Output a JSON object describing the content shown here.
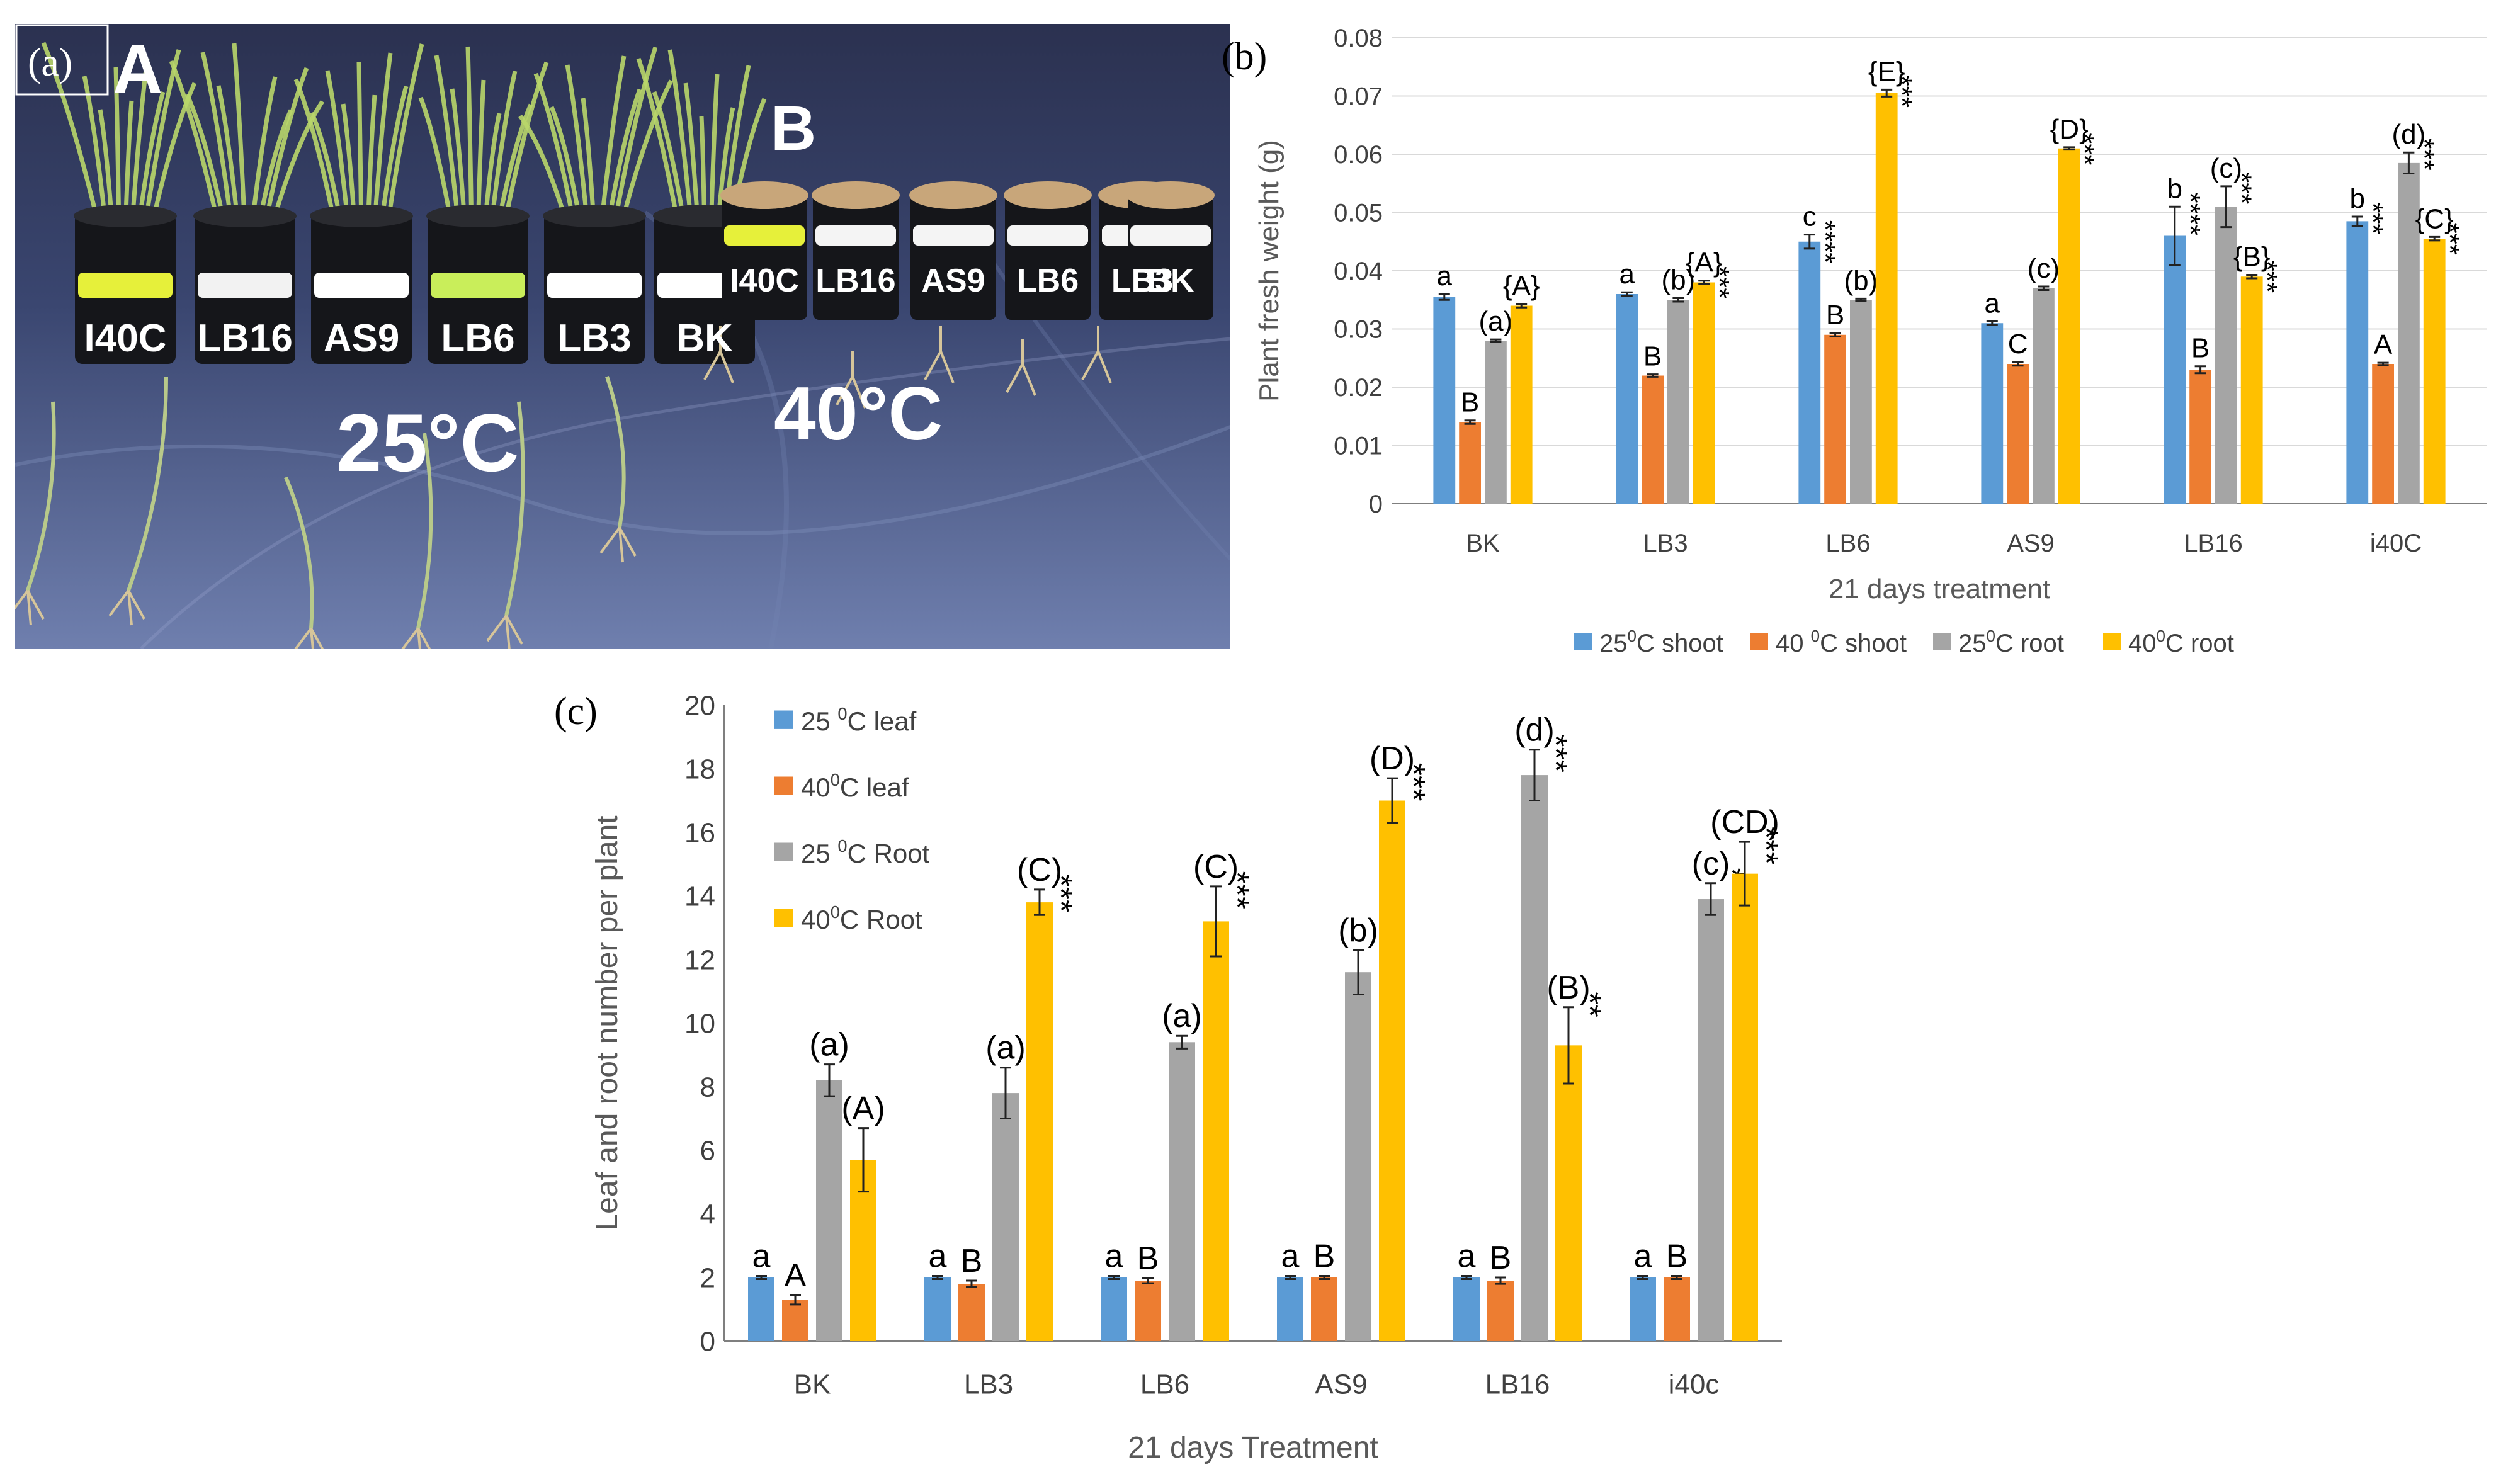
{
  "panel_a": {
    "label": "(a)",
    "group_a": "A",
    "group_b": "B",
    "temp_a": "25°C",
    "temp_b": "40°C",
    "pots_a": [
      "I40C",
      "LB16",
      "AS9",
      "LB6",
      "LB3",
      "BK"
    ],
    "pots_b": [
      "I40C",
      "LB16",
      "AS9",
      "LB6",
      "LB3",
      "BK"
    ],
    "colors": {
      "backdrop": "#34406a",
      "pot": "#15161a",
      "leaf": "#b9d66a",
      "soil": "#c8a67a"
    }
  },
  "chart_data": [
    {
      "type": "bar",
      "panel": "(b)",
      "title": "",
      "xlabel": "21 days treatment",
      "ylabel": "Plant fresh weight (g)",
      "ylim": [
        0,
        0.08
      ],
      "yticks": [
        "0",
        "0.01",
        "0.02",
        "0.03",
        "0.04",
        "0.05",
        "0.06",
        "0.07",
        "0.08"
      ],
      "legend_position": "bottom",
      "categories": [
        "BK",
        "LB3",
        "LB6",
        "AS9",
        "LB16",
        "i40C"
      ],
      "series": [
        {
          "name": "25°C shoot",
          "color": "#5b9bd5",
          "values": [
            0.0355,
            0.036,
            0.045,
            0.031,
            0.046,
            0.0485
          ],
          "errors": [
            0.0005,
            0.0003,
            0.0012,
            0.0003,
            0.005,
            0.0008
          ],
          "labels": [
            "a",
            "a",
            "c",
            "a",
            "b",
            "b"
          ],
          "stars": [
            "",
            "",
            "****",
            "",
            "****",
            "***"
          ]
        },
        {
          "name": "40°C shoot",
          "color": "#ed7d31",
          "values": [
            0.014,
            0.022,
            0.029,
            0.024,
            0.023,
            0.024
          ],
          "errors": [
            0.0003,
            0.0002,
            0.0003,
            0.0003,
            0.0006,
            0.0002
          ],
          "labels": [
            "B",
            "B",
            "B",
            "C",
            "B",
            "A"
          ],
          "stars": [
            "",
            "",
            "***",
            "***",
            "***",
            "***"
          ]
        },
        {
          "name": "25°C root",
          "color": "#a5a5a5",
          "values": [
            0.028,
            0.035,
            0.035,
            0.037,
            0.051,
            0.0585
          ],
          "errors": [
            0.0002,
            0.0003,
            0.0002,
            0.0003,
            0.0035,
            0.0018
          ],
          "labels": [
            "(a)",
            "(b)",
            "(b)",
            "(c)",
            "(c)",
            "(d)"
          ],
          "stars": [
            "",
            "**",
            "**",
            "***",
            "***",
            "***"
          ]
        },
        {
          "name": "40°C root",
          "color": "#ffc000",
          "values": [
            0.034,
            0.038,
            0.0705,
            0.061,
            0.039,
            0.0455
          ],
          "errors": [
            0.0003,
            0.0003,
            0.0006,
            0.0002,
            0.0003,
            0.0003
          ],
          "labels": [
            "{A}",
            "{A}",
            "{E}",
            "{D}",
            "{B}",
            "{C}"
          ],
          "stars": [
            "",
            "***",
            "***",
            "***",
            "***",
            "***"
          ]
        }
      ],
      "legend_labels": [
        {
          "temp": "25",
          "deg": "0",
          "unit": "C shoot"
        },
        {
          "temp": "40 ",
          "deg": "0",
          "unit": "C shoot"
        },
        {
          "temp": "25",
          "deg": "0",
          "unit": "C root"
        },
        {
          "temp": "40",
          "deg": "0",
          "unit": "C root"
        }
      ]
    },
    {
      "type": "bar",
      "panel": "(c)",
      "title": "",
      "xlabel": "21 days Treatment",
      "ylabel": "Leaf and root number per plant",
      "ylim": [
        0,
        20
      ],
      "yticks": [
        "0",
        "2",
        "4",
        "6",
        "8",
        "10",
        "12",
        "14",
        "16",
        "18",
        "20"
      ],
      "legend_position": "top-left",
      "categories": [
        "BK",
        "LB3",
        "LB6",
        "AS9",
        "LB16",
        "i40c"
      ],
      "series": [
        {
          "name": "25°C leaf",
          "color": "#5b9bd5",
          "values": [
            2,
            2,
            2,
            2,
            2,
            2
          ],
          "errors": [
            0.05,
            0.05,
            0.05,
            0.05,
            0.05,
            0.05
          ],
          "labels": [
            "a",
            "a",
            "a",
            "a",
            "a",
            "a"
          ],
          "stars": [
            "",
            "",
            "",
            "",
            "",
            ""
          ]
        },
        {
          "name": "40°C leaf",
          "color": "#ed7d31",
          "values": [
            1.3,
            1.8,
            1.9,
            2,
            1.9,
            2
          ],
          "errors": [
            0.15,
            0.1,
            0.08,
            0.05,
            0.1,
            0.05
          ],
          "labels": [
            "A",
            "B",
            "B",
            "B",
            "B",
            "B"
          ],
          "stars": [
            "",
            "***",
            "***",
            "***",
            "***",
            "***"
          ]
        },
        {
          "name": "25°C Root",
          "color": "#a5a5a5",
          "values": [
            8.2,
            7.8,
            9.4,
            11.6,
            17.8,
            13.9
          ],
          "errors": [
            0.5,
            0.8,
            0.2,
            0.7,
            0.8,
            0.5
          ],
          "labels": [
            "(a)",
            "(a)",
            "(a)",
            "(b)",
            "(d)",
            "(c)"
          ],
          "stars": [
            "",
            "",
            "",
            "***",
            "***",
            "***"
          ]
        },
        {
          "name": "40°C Root",
          "color": "#ffc000",
          "values": [
            5.7,
            13.8,
            13.2,
            17,
            9.3,
            14.7
          ],
          "errors": [
            1.0,
            0.4,
            1.1,
            0.7,
            1.2,
            1.0
          ],
          "labels": [
            "(A)",
            "(C)",
            "(C)",
            "(D)",
            "(B)",
            "(CD)"
          ],
          "stars": [
            "",
            "***",
            "***",
            "***",
            "**",
            "***"
          ]
        }
      ],
      "legend_labels": [
        {
          "temp": "25 ",
          "deg": "0",
          "unit": "C  leaf"
        },
        {
          "temp": "40",
          "deg": "0",
          "unit": "C  leaf"
        },
        {
          "temp": "25 ",
          "deg": "0",
          "unit": "C  Root"
        },
        {
          "temp": "40",
          "deg": "0",
          "unit": "C  Root"
        }
      ]
    }
  ]
}
